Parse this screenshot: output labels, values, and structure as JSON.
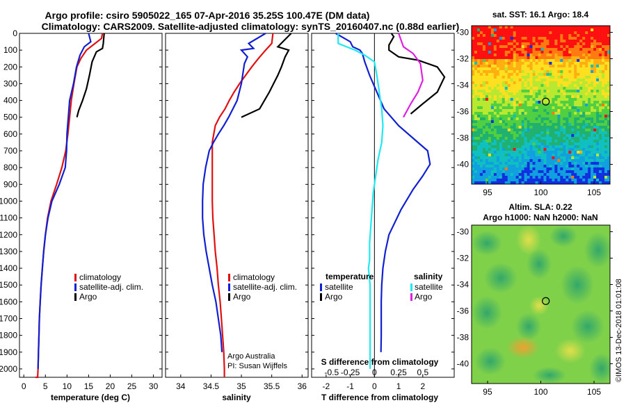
{
  "title": {
    "line1": "Argo profile: csiro 5905022_165 07-Apr-2016 35.25S 100.47E (DM data)",
    "line2": "Climatology: CARS2009. Satellite-adjusted climatology: synTS_20160407.nc (0.88d earlier)"
  },
  "colors": {
    "climatology": "#e01010",
    "satellite": "#1020d0",
    "argo": "#000000",
    "sat_salinity": "#20e8f0",
    "argo_salinity": "#e020e0"
  },
  "chart_data": [
    {
      "type": "line",
      "panel": "temperature",
      "xlabel": "temperature (deg C)",
      "ylabel": "",
      "xlim": [
        -1,
        32
      ],
      "ylim": [
        2050,
        0
      ],
      "xticks": [
        "0",
        "5",
        "10",
        "15",
        "20",
        "25",
        "30"
      ],
      "yticks": [
        "0",
        "100",
        "200",
        "300",
        "400",
        "500",
        "600",
        "700",
        "800",
        "900",
        "1000",
        "1100",
        "1200",
        "1300",
        "1400",
        "1500",
        "1600",
        "1700",
        "1800",
        "1900",
        "2000"
      ],
      "legend": [
        "climatology",
        "satellite-adj. clim.",
        "Argo"
      ],
      "series": [
        {
          "name": "climatology",
          "x": [
            18.2,
            18.0,
            16.5,
            14.5,
            13.2,
            12.3,
            11.6,
            11.0,
            10.6,
            10.2,
            9.7,
            8.8,
            7.6,
            6.3,
            5.5,
            5.0,
            4.6,
            4.3,
            4.0,
            3.8,
            3.6,
            3.5,
            3.4,
            3.3,
            3.2,
            3.1,
            3.0,
            2.9,
            2.8,
            2.7
          ],
          "y": [
            0,
            30,
            60,
            100,
            150,
            200,
            300,
            400,
            500,
            600,
            700,
            800,
            900,
            1000,
            1100,
            1200,
            1300,
            1400,
            1500,
            1600,
            1700,
            1800,
            1900,
            2000,
            2050,
            2050,
            2050,
            2050,
            2050,
            2050
          ]
        },
        {
          "name": "satellite-adj. clim.",
          "x": [
            15.0,
            15.5,
            14.0,
            13.0,
            12.2,
            11.5,
            10.6,
            10.3,
            10.0,
            9.9,
            9.6,
            8.2,
            6.5,
            5.6,
            5.0,
            4.6,
            4.3,
            4.0,
            3.8,
            3.6,
            3.5,
            3.4,
            3.3
          ],
          "y": [
            0,
            50,
            80,
            130,
            200,
            300,
            400,
            500,
            600,
            700,
            800,
            900,
            1000,
            1100,
            1200,
            1300,
            1400,
            1500,
            1600,
            1700,
            1800,
            1900,
            2000
          ]
        },
        {
          "name": "Argo",
          "x": [
            18.6,
            18.5,
            18.4,
            18.2,
            16.8,
            15.8,
            15.2,
            14.5,
            13.6,
            12.7,
            12.3
          ],
          "y": [
            0,
            30,
            60,
            90,
            110,
            170,
            250,
            330,
            400,
            460,
            500
          ]
        }
      ]
    },
    {
      "type": "line",
      "panel": "salinity",
      "xlabel": "salinity",
      "xlim": [
        33.75,
        36.1
      ],
      "ylim": [
        2050,
        0
      ],
      "xticks": [
        "34",
        "34.5",
        "35",
        "35.5",
        "36"
      ],
      "legend": [
        "climatology",
        "satellite-adj. clim.",
        "Argo"
      ],
      "series": [
        {
          "name": "climatology",
          "x": [
            35.52,
            35.5,
            35.4,
            35.28,
            35.17,
            35.07,
            34.97,
            34.88,
            34.8,
            34.73,
            34.64,
            34.57,
            34.52,
            34.52,
            34.53,
            34.55,
            34.57,
            34.6,
            34.62,
            34.65,
            34.67,
            34.69,
            34.71,
            34.72,
            34.72
          ],
          "y": [
            0,
            60,
            100,
            150,
            200,
            250,
            300,
            350,
            400,
            450,
            500,
            550,
            650,
            1000,
            1100,
            1200,
            1300,
            1400,
            1500,
            1600,
            1700,
            1800,
            1900,
            2000,
            2050
          ]
        },
        {
          "name": "satellite-adj. clim.",
          "x": [
            35.4,
            35.12,
            35.2,
            35.0,
            35.1,
            35.05,
            35.0,
            34.93,
            34.86,
            34.79,
            34.71,
            34.62,
            34.54,
            34.47,
            34.41,
            34.37,
            34.36,
            34.36,
            34.38,
            34.42,
            34.47,
            34.52,
            34.58,
            34.62,
            34.66,
            34.68
          ],
          "y": [
            0,
            60,
            90,
            100,
            140,
            180,
            300,
            400,
            450,
            500,
            550,
            600,
            650,
            700,
            800,
            900,
            1000,
            1100,
            1200,
            1300,
            1400,
            1500,
            1600,
            1700,
            1800,
            1900
          ]
        },
        {
          "name": "Argo",
          "x": [
            35.82,
            35.6,
            35.78,
            35.72,
            35.66,
            35.6,
            35.53,
            35.46,
            35.38,
            35.3,
            35.0
          ],
          "y": [
            0,
            80,
            100,
            140,
            200,
            250,
            300,
            350,
            400,
            450,
            500
          ]
        }
      ],
      "annotations": [
        "Argo Australia",
        "PI: Susan Wijffels"
      ]
    },
    {
      "type": "line",
      "panel": "difference",
      "xlabel": "T difference from climatology",
      "xlabel_top": "S difference from climatology",
      "xlim": [
        -2.6,
        3.3
      ],
      "ylim": [
        2050,
        0
      ],
      "xticks": [
        "-2",
        "-1",
        "0",
        "1",
        "2"
      ],
      "xticks_salinity": [
        "-0.5",
        "-0.25",
        "0",
        "0.25",
        "0.5"
      ],
      "legend_titles": [
        "temperature",
        "salinity"
      ],
      "legend": [
        "satellite",
        "Argo",
        "satellite",
        "Argo"
      ],
      "series": [
        {
          "name": "temperature satellite",
          "x": [
            -1.6,
            -1.0,
            -0.9,
            -0.6,
            -0.5,
            -0.4,
            -0.2,
            0.1,
            0.4,
            1.0,
            1.8,
            2.2,
            2.3,
            2.0,
            1.6,
            1.1,
            0.6,
            0.45,
            0.35,
            0.3,
            0.28,
            0.28,
            0.28,
            0.27
          ],
          "y": [
            0,
            50,
            80,
            100,
            120,
            170,
            250,
            350,
            450,
            550,
            650,
            700,
            780,
            850,
            930,
            1050,
            1200,
            1300,
            1400,
            1500,
            1600,
            1700,
            1800,
            1900
          ]
        },
        {
          "name": "temperature Argo",
          "x": [
            0.7,
            0.8,
            0.6,
            0.6,
            1.0,
            1.8,
            2.6,
            2.9,
            2.6,
            2.0,
            1.5
          ],
          "y": [
            0,
            20,
            70,
            100,
            140,
            160,
            200,
            260,
            350,
            420,
            480
          ]
        },
        {
          "name": "salinity satellite",
          "x": [
            -1.5,
            -1.5,
            -0.8,
            -0.4,
            0.0,
            0.1,
            0.2,
            0.3,
            0.35,
            0.3,
            0.15,
            0.05,
            -0.05,
            -0.1,
            -0.15,
            -0.2,
            -0.2,
            -0.25,
            -0.18,
            -0.18,
            -0.18,
            -0.18,
            -0.18,
            -0.18
          ],
          "y": [
            0,
            60,
            100,
            130,
            170,
            250,
            350,
            450,
            550,
            650,
            750,
            850,
            950,
            1050,
            1150,
            1250,
            1350,
            1400,
            1500,
            1600,
            1700,
            1800,
            1900,
            2000
          ]
        },
        {
          "name": "salinity Argo",
          "x": [
            1.0,
            1.1,
            1.2,
            1.6,
            1.9,
            2.0,
            1.8,
            1.5,
            1.2
          ],
          "y": [
            0,
            40,
            80,
            120,
            180,
            280,
            350,
            420,
            500
          ]
        }
      ]
    },
    {
      "type": "heatmap",
      "panel": "sst_map",
      "title": "sat. SST: 16.1 Argo: 18.4",
      "xticks": [
        "95",
        "100",
        "105"
      ],
      "yticks": [
        "-30",
        "-32",
        "-34",
        "-36",
        "-38",
        "-40"
      ],
      "xlim": [
        93.5,
        106.5
      ],
      "ylim": [
        -41.5,
        -29.5
      ],
      "marker": {
        "lon": 100.47,
        "lat": -35.25
      }
    },
    {
      "type": "heatmap",
      "panel": "sla_map",
      "title": "Altim. SLA: 0.22",
      "subtitle": "Argo h1000: NaN h2000: NaN",
      "xticks": [
        "95",
        "100",
        "105"
      ],
      "yticks": [
        "-30",
        "-32",
        "-34",
        "-36",
        "-38",
        "-40"
      ],
      "xlim": [
        93.5,
        106.5
      ],
      "ylim": [
        -41.5,
        -29.5
      ],
      "marker": {
        "lon": 100.47,
        "lat": -35.25
      }
    }
  ],
  "footer": "©IMOS 13-Dec-2018 01:01:08"
}
